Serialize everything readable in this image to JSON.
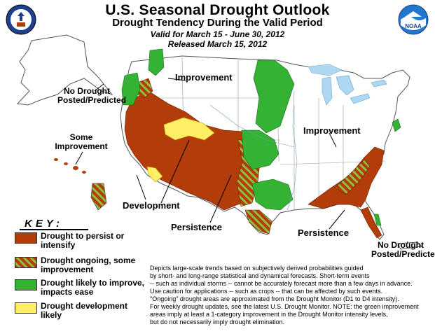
{
  "header": {
    "title": "U.S. Seasonal Drought Outlook",
    "subtitle": "Drought Tendency During the Valid Period",
    "valid_period": "Valid for March 15 - June 30, 2012",
    "released": "Released March 15, 2012"
  },
  "logos": {
    "left": "department-of-commerce-seal",
    "right": "noaa-logo",
    "right_text": "NOAA"
  },
  "map_labels": {
    "improvement_west": "Improvement",
    "improvement_east": "Improvement",
    "no_drought_alaska_1": "No Drought",
    "no_drought_alaska_2": "Posted/Predicted",
    "some_improvement_1": "Some",
    "some_improvement_2": "Improvement",
    "development": "Development",
    "persistence_west": "Persistence",
    "persistence_southeast": "Persistence",
    "no_drought_pr_1": "No Drought",
    "no_drought_pr_2": "Posted/Predicted"
  },
  "key": {
    "title": "KEY:",
    "items": [
      {
        "label_1": "Drought to persist or",
        "label_2": "intensify",
        "color": "#b23c0a",
        "pattern": "solid"
      },
      {
        "label_1": "Drought ongoing, some",
        "label_2": "improvement",
        "color": "#b23c0a",
        "stripe_color": "#8fbf3f",
        "pattern": "hatched"
      },
      {
        "label_1": "Drought likely to improve,",
        "label_2": "impacts ease",
        "color": "#33b233",
        "pattern": "solid"
      },
      {
        "label_1": "Drought development",
        "label_2": "likely",
        "color": "#ffee66",
        "pattern": "solid"
      }
    ]
  },
  "disclaimer": [
    "Depicts large-scale trends based on subjectively derived probabilities guided",
    "by short- and long-range statistical and dynamical forecasts. Short-term events",
    "-- such as individual storms -- cannot be accurately forecast more than a few days in advance.",
    "Use caution for applications -- such as crops -- that can be affected by such events.",
    "\"Ongoing\" drought areas are approximated from the Drought Monitor (D1 to D4 intensity).",
    "For weekly drought updates, see the latest U.S. Drought Monitor. NOTE: the green improvement",
    "areas imply at least a 1-category improvement in the Drought Monitor intensity levels,",
    "but do not necessarily imply drought elimination."
  ],
  "colors": {
    "persist": "#b23c0a",
    "improve": "#33b233",
    "develop": "#ffee66",
    "hatch": "#8fbf3f",
    "water": "#aed8f2",
    "land": "#ffffff",
    "borders": "#777777"
  }
}
